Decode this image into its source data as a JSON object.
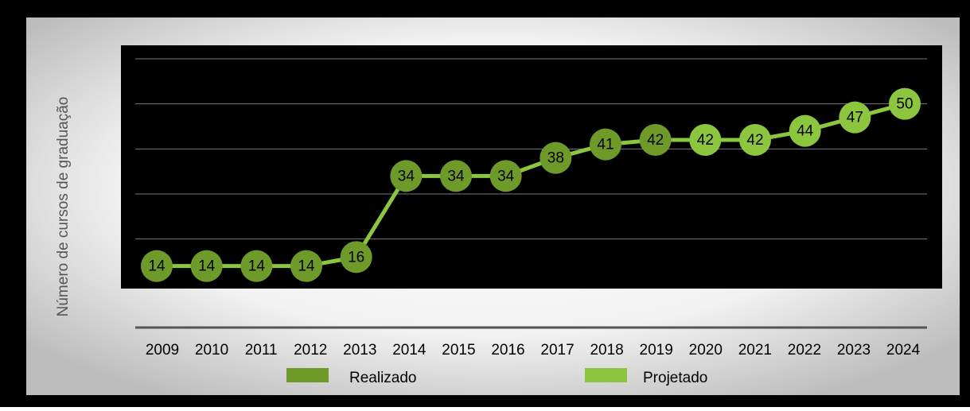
{
  "chart_data": {
    "type": "line",
    "y_label": "Número de cursos de graduação",
    "categories": [
      "2009",
      "2010",
      "2011",
      "2012",
      "2013",
      "2014",
      "2015",
      "2016",
      "2017",
      "2018",
      "2019",
      "2020",
      "2021",
      "2022",
      "2023",
      "2024"
    ],
    "series": [
      {
        "name": "Realizado",
        "color": "#6e9a2a",
        "values": [
          14,
          14,
          14,
          14,
          16,
          34,
          34,
          34,
          38,
          41,
          42,
          null,
          null,
          null,
          null,
          null
        ]
      },
      {
        "name": "Projetado",
        "color": "#8cc63f",
        "values": [
          null,
          null,
          null,
          null,
          null,
          null,
          null,
          null,
          null,
          null,
          null,
          42,
          42,
          44,
          47,
          50
        ]
      }
    ],
    "line_color": "#8cc63f",
    "ylim": [
      9,
      63
    ],
    "yticks": [
      20,
      30,
      40,
      50,
      60
    ],
    "grid": true
  }
}
